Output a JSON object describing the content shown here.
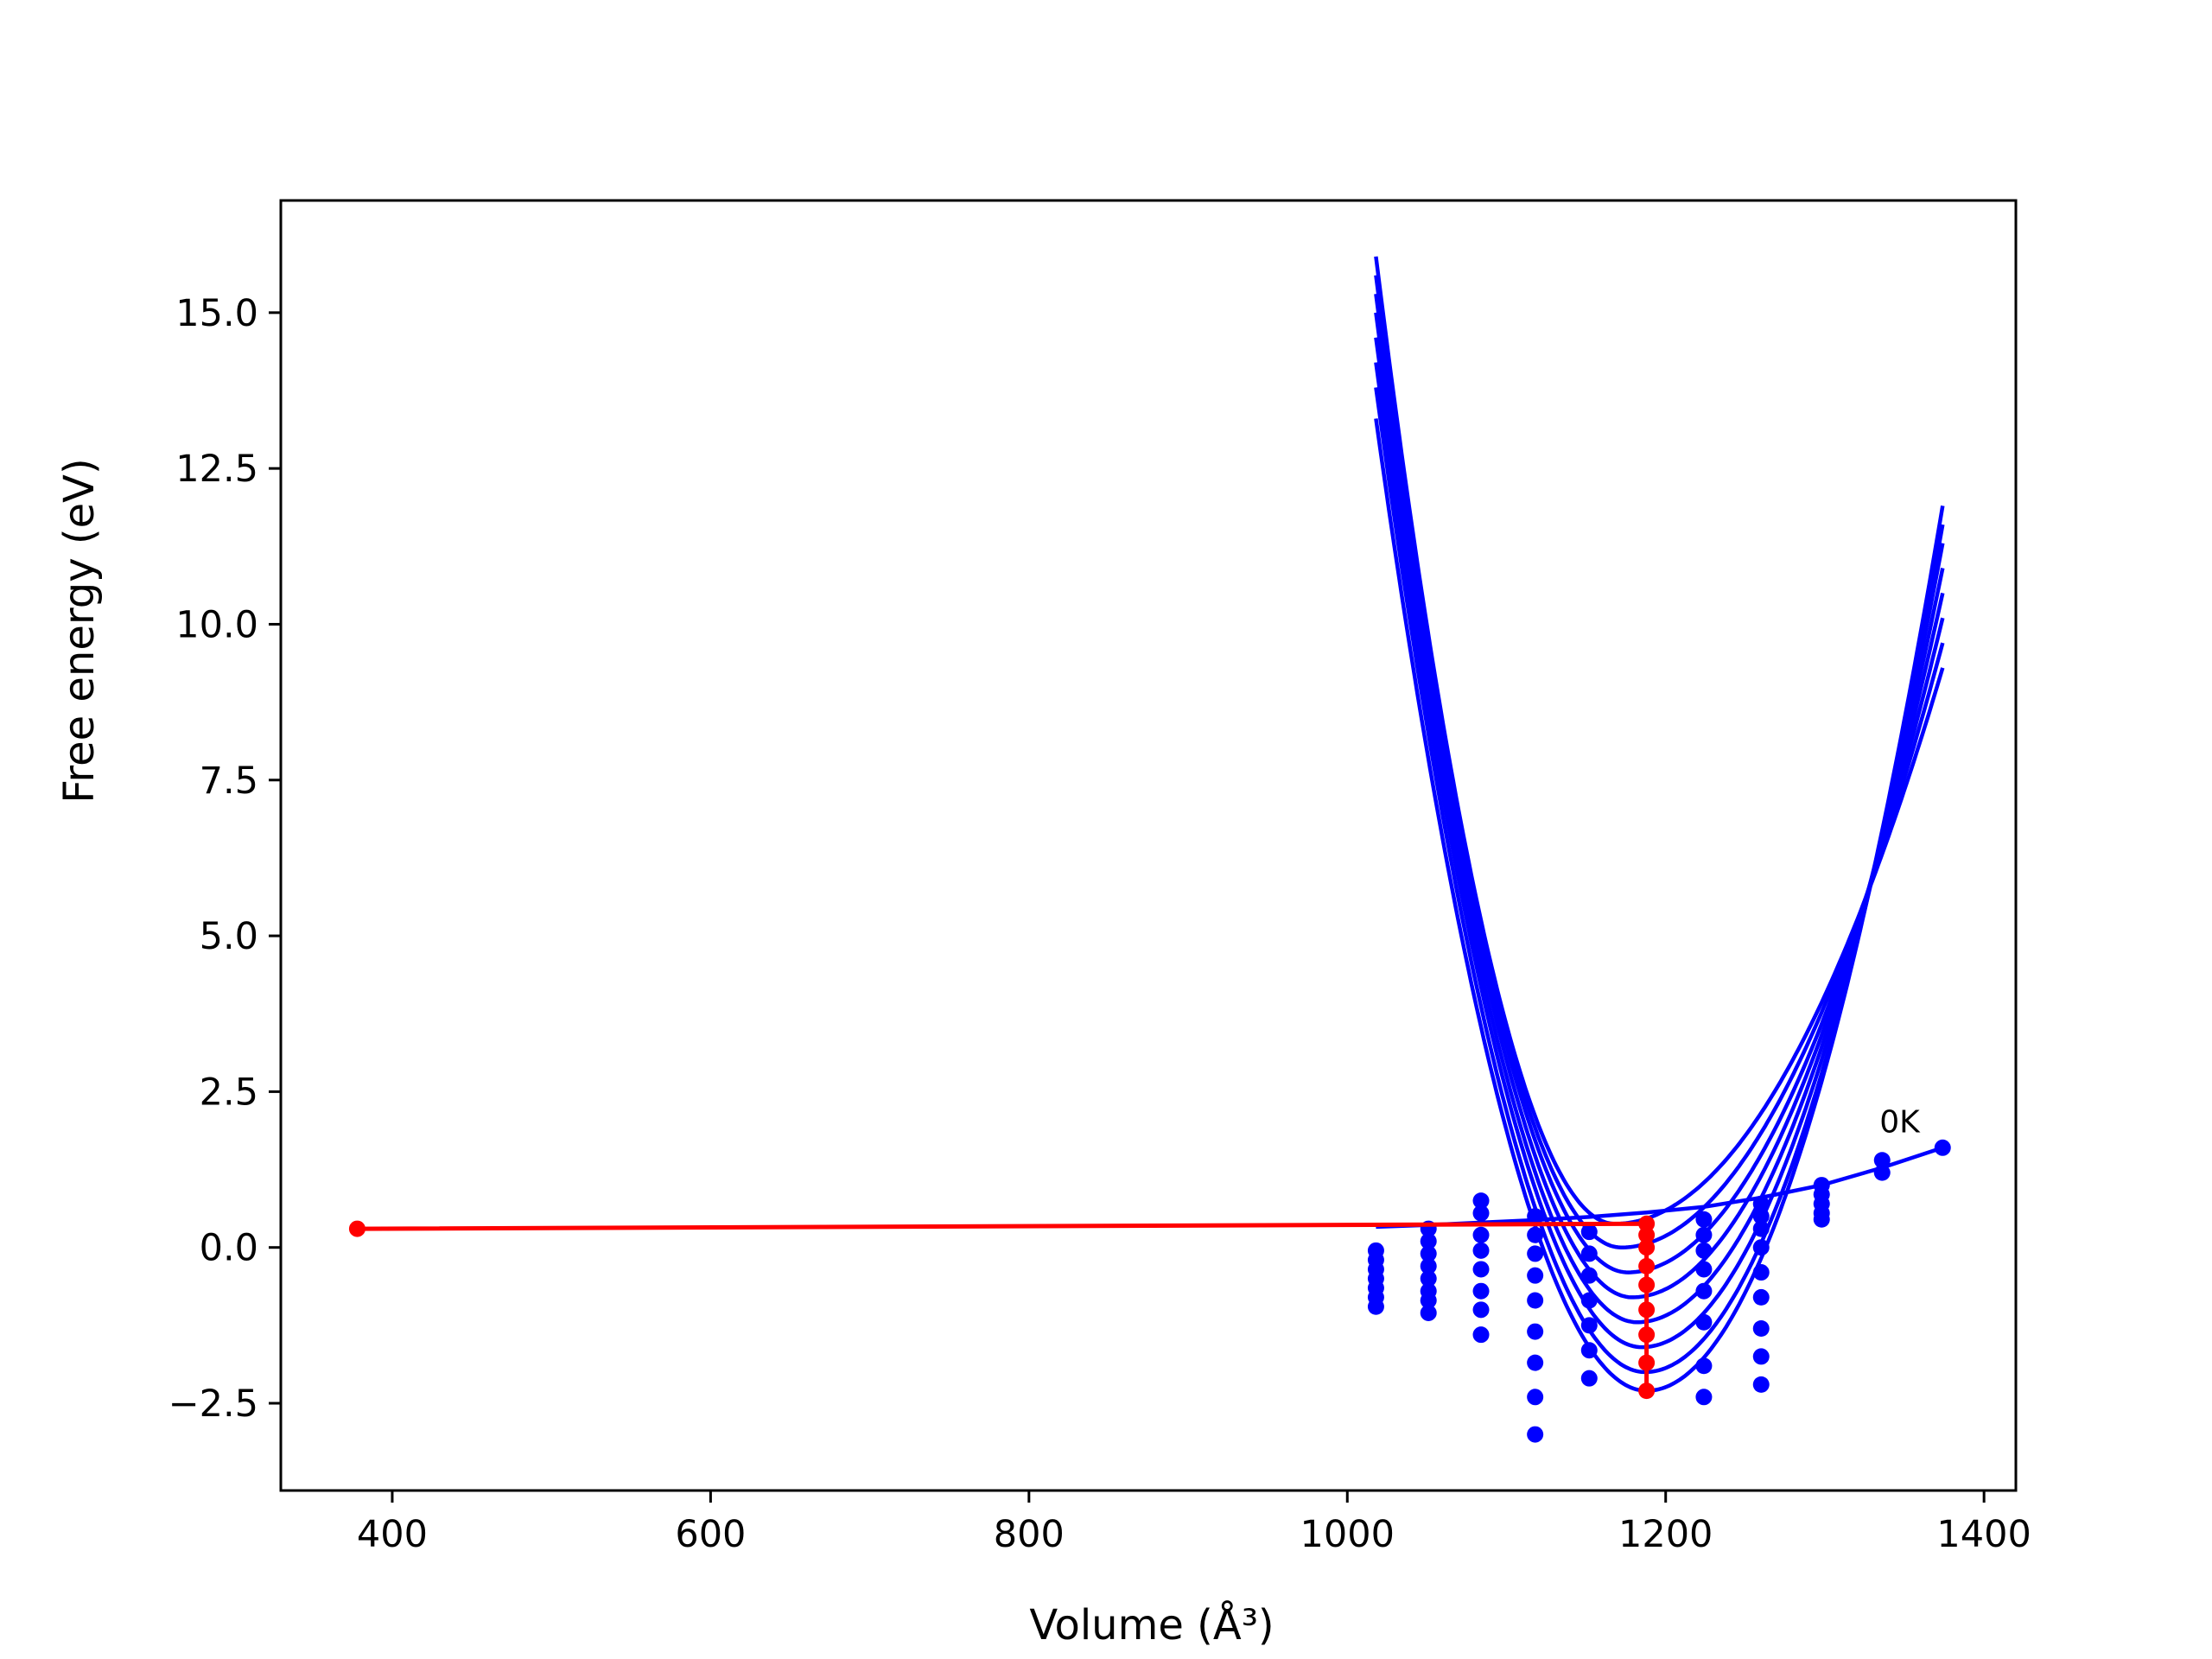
{
  "chart_data": {
    "type": "line",
    "title": "",
    "xlabel": "Volume (Å³)",
    "ylabel": "Free energy (eV)",
    "xlim": [
      330,
      1420
    ],
    "ylim": [
      -3.9,
      16.8
    ],
    "xticks": [
      400,
      600,
      800,
      1000,
      1200,
      1400
    ],
    "yticks": [
      -2.5,
      0.0,
      2.5,
      5.0,
      7.5,
      10.0,
      12.5,
      15.0
    ],
    "grid": false,
    "legend": "none",
    "colors": {
      "curves": "#0000ff",
      "minima": "#ff0000",
      "axes": "#000000"
    },
    "annotation": {
      "text": "0K",
      "x": 1347,
      "y": 1.85
    },
    "fit_curves": {
      "x_range": [
        1018,
        1374
      ],
      "minima": [
        {
          "v": 1168,
          "f": 0.38
        },
        {
          "v": 1172,
          "f": 0.0
        },
        {
          "v": 1176,
          "f": -0.4
        },
        {
          "v": 1179,
          "f": -0.8
        },
        {
          "v": 1182,
          "f": -1.2
        },
        {
          "v": 1185,
          "f": -1.6
        },
        {
          "v": 1187,
          "f": -2.0
        },
        {
          "v": 1188,
          "f": -2.3
        }
      ],
      "left_end_values": [
        15.9,
        15.6,
        15.3,
        15.0,
        14.6,
        14.2,
        13.8,
        13.3
      ],
      "right_end_values": [
        9.3,
        9.7,
        10.1,
        10.5,
        10.9,
        11.3,
        11.6,
        11.9
      ]
    },
    "data_volumes": [
      1018,
      1051,
      1084,
      1118,
      1152,
      1188,
      1224,
      1260,
      1298,
      1336,
      1374
    ],
    "data_points": [
      {
        "x": 1018,
        "y": [
          -0.05,
          -0.2,
          -0.35,
          -0.5,
          -0.65,
          -0.8,
          -0.95
        ]
      },
      {
        "x": 1051,
        "y": [
          0.3,
          0.1,
          -0.1,
          -0.3,
          -0.5,
          -0.7,
          -0.85,
          -1.05
        ]
      },
      {
        "x": 1084,
        "y": [
          0.75,
          0.55,
          0.2,
          -0.05,
          -0.35,
          -0.7,
          -1.0,
          -1.4
        ]
      },
      {
        "x": 1118,
        "y": [
          0.5,
          0.2,
          -0.1,
          -0.45,
          -0.85,
          -1.35,
          -1.85,
          -2.4,
          -3.0
        ]
      },
      {
        "x": 1152,
        "y": [
          0.25,
          -0.1,
          -0.45,
          -0.85,
          -1.25,
          -1.65,
          -2.1
        ]
      },
      {
        "x": 1224,
        "y": [
          0.45,
          0.2,
          -0.05,
          -0.35,
          -0.7,
          -1.2,
          -1.9,
          -2.4
        ]
      },
      {
        "x": 1260,
        "y": [
          0.7,
          0.5,
          0.3,
          0.0,
          -0.4,
          -0.8,
          -1.3,
          -1.75,
          -2.2
        ]
      },
      {
        "x": 1298,
        "y": [
          1.0,
          0.85,
          0.7,
          0.55,
          0.45
        ]
      },
      {
        "x": 1336,
        "y": [
          1.4,
          1.2
        ]
      },
      {
        "x": 1374,
        "y": [
          1.6
        ]
      }
    ],
    "red_series": {
      "name": "",
      "x": [
        378,
        1188,
        1188,
        1188,
        1188,
        1188,
        1188,
        1188,
        1188,
        1188
      ],
      "y": [
        0.3,
        0.38,
        0.0,
        -0.3,
        -0.6,
        -1.0,
        -1.4,
        -1.85,
        -2.3,
        0.2
      ]
    },
    "line_0K": {
      "x": [
        1018,
        1051,
        1084,
        1118,
        1152,
        1188,
        1224,
        1260,
        1298,
        1336,
        1374
      ],
      "y": [
        0.33,
        0.36,
        0.4,
        0.44,
        0.49,
        0.56,
        0.65,
        0.8,
        1.0,
        1.28,
        1.6
      ]
    }
  }
}
